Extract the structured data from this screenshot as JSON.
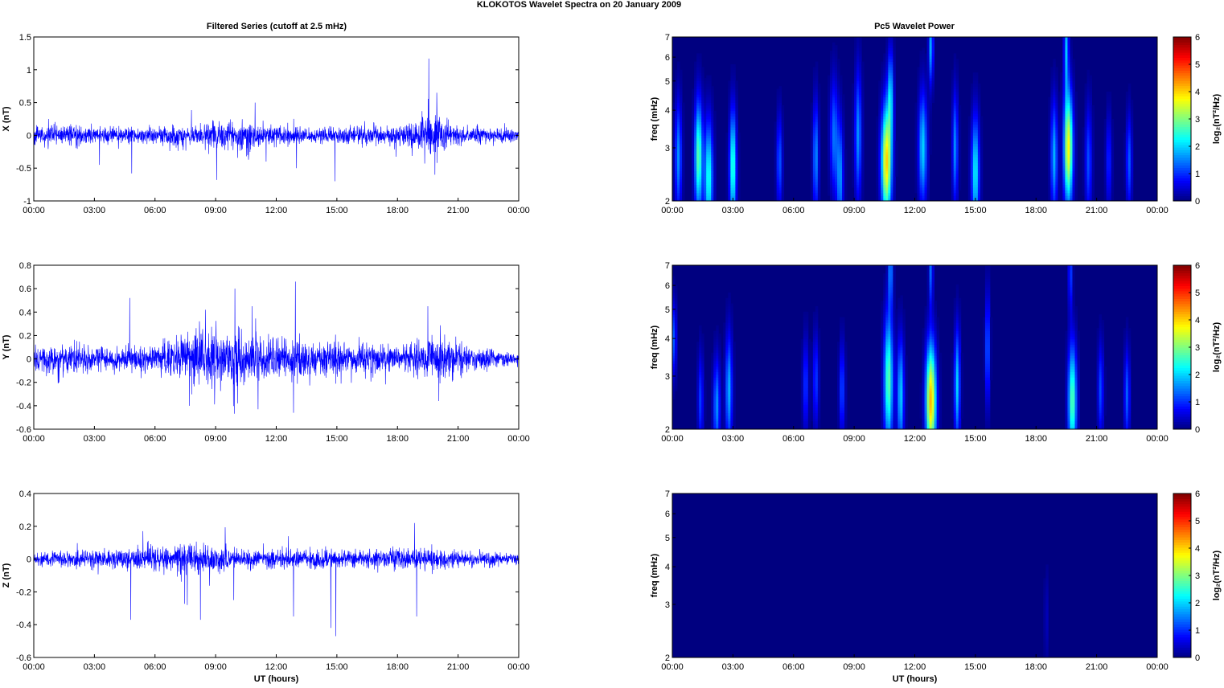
{
  "figure": {
    "title": "KLOKOTOS Wavelet Spectra on 20 January   2009",
    "left_column_title": "Filtered Series (cutoff at 2.5 mHz)",
    "right_column_title": "Pc5 Wavelet Power"
  },
  "time_ticks": [
    "00:00",
    "03:00",
    "06:00",
    "09:00",
    "12:00",
    "15:00",
    "18:00",
    "21:00",
    "00:00"
  ],
  "colors": {
    "series": "#0000ff",
    "axes": "#000000"
  },
  "colormap": "jet",
  "chart_data": [
    {
      "id": "x-series",
      "type": "line",
      "xlabel": "",
      "ylabel": "X (nT)",
      "xlim": [
        0,
        24
      ],
      "ylim": [
        -1,
        1.5
      ],
      "yticks": [
        "-1",
        "-0.5",
        "0",
        "0.5",
        "1",
        "1.5"
      ],
      "ytick_values": [
        -1,
        -0.5,
        0,
        0.5,
        1,
        1.5
      ],
      "x_unit": "hours UT",
      "series": [
        {
          "color": "#0000ff",
          "noise_envelope": [
            [
              0,
              0.12
            ],
            [
              2,
              0.14
            ],
            [
              4,
              0.09
            ],
            [
              6,
              0.12
            ],
            [
              8,
              0.15
            ],
            [
              10,
              0.2
            ],
            [
              12,
              0.14
            ],
            [
              14,
              0.11
            ],
            [
              16,
              0.12
            ],
            [
              18,
              0.12
            ],
            [
              19.8,
              0.3
            ],
            [
              21,
              0.12
            ],
            [
              24,
              0.08
            ]
          ],
          "spikes": [
            [
              4.85,
              -0.58
            ],
            [
              10.95,
              0.5
            ],
            [
              19.55,
              1.17
            ],
            [
              19.85,
              -0.6
            ],
            [
              19.95,
              0.65
            ],
            [
              9.05,
              -0.68
            ],
            [
              14.9,
              -0.7
            ],
            [
              13.0,
              -0.5
            ],
            [
              3.25,
              -0.45
            ],
            [
              11.5,
              -0.4
            ]
          ]
        }
      ]
    },
    {
      "id": "y-series",
      "type": "line",
      "xlabel": "",
      "ylabel": "Y (nT)",
      "xlim": [
        0,
        24
      ],
      "ylim": [
        -0.6,
        0.8
      ],
      "yticks": [
        "-0.6",
        "-0.4",
        "-0.2",
        "0",
        "0.2",
        "0.4",
        "0.6",
        "0.8"
      ],
      "ytick_values": [
        -0.6,
        -0.4,
        -0.2,
        0,
        0.2,
        0.4,
        0.6,
        0.8
      ],
      "x_unit": "hours UT",
      "series": [
        {
          "color": "#0000ff",
          "noise_envelope": [
            [
              0,
              0.1
            ],
            [
              2,
              0.12
            ],
            [
              4,
              0.08
            ],
            [
              6,
              0.1
            ],
            [
              7.5,
              0.2
            ],
            [
              9,
              0.2
            ],
            [
              10.5,
              0.2
            ],
            [
              11.5,
              0.14
            ],
            [
              13,
              0.18
            ],
            [
              14,
              0.12
            ],
            [
              16,
              0.12
            ],
            [
              18,
              0.1
            ],
            [
              20,
              0.16
            ],
            [
              22,
              0.08
            ],
            [
              24,
              0.05
            ]
          ],
          "spikes": [
            [
              4.75,
              0.52
            ],
            [
              9.95,
              0.6
            ],
            [
              12.95,
              0.66
            ],
            [
              12.85,
              -0.46
            ],
            [
              11.1,
              -0.43
            ],
            [
              19.5,
              0.45
            ],
            [
              20.05,
              -0.36
            ],
            [
              7.7,
              -0.4
            ],
            [
              8.5,
              0.42
            ],
            [
              10.8,
              0.45
            ]
          ]
        }
      ]
    },
    {
      "id": "z-series",
      "type": "line",
      "xlabel": "UT (hours)",
      "ylabel": "Z (nT)",
      "xlim": [
        0,
        24
      ],
      "ylim": [
        -0.6,
        0.4
      ],
      "yticks": [
        "-0.6",
        "-0.4",
        "-0.2",
        "0",
        "0.2",
        "0.4"
      ],
      "ytick_values": [
        -0.6,
        -0.4,
        -0.2,
        0,
        0.2,
        0.4
      ],
      "x_unit": "hours UT",
      "series": [
        {
          "color": "#0000ff",
          "noise_envelope": [
            [
              0,
              0.04
            ],
            [
              4,
              0.05
            ],
            [
              6,
              0.06
            ],
            [
              8,
              0.08
            ],
            [
              10,
              0.06
            ],
            [
              12,
              0.05
            ],
            [
              14,
              0.05
            ],
            [
              16,
              0.05
            ],
            [
              18,
              0.06
            ],
            [
              20,
              0.05
            ],
            [
              24,
              0.03
            ]
          ],
          "spikes": [
            [
              4.8,
              -0.37
            ],
            [
              8.25,
              -0.37
            ],
            [
              14.7,
              -0.42
            ],
            [
              14.95,
              -0.47
            ],
            [
              18.85,
              0.22
            ],
            [
              18.95,
              -0.35
            ],
            [
              12.85,
              -0.35
            ],
            [
              7.6,
              -0.28
            ],
            [
              9.9,
              -0.25
            ],
            [
              5.4,
              0.17
            ]
          ]
        }
      ]
    },
    {
      "id": "x-wavelet",
      "type": "heatmap",
      "xlabel": "",
      "ylabel": "freq (mHz)",
      "xlim": [
        0,
        24
      ],
      "ylim": [
        2,
        7
      ],
      "yscale": "log",
      "yticks": [
        "2",
        "3",
        "4",
        "5",
        "6",
        "7"
      ],
      "ytick_values": [
        2,
        3,
        4,
        5,
        6,
        7
      ],
      "colorbar": {
        "label": "log₂(nT²/Hz)",
        "range": [
          0,
          6
        ],
        "ticks": [
          "0",
          "1",
          "2",
          "3",
          "4",
          "5",
          "6"
        ]
      },
      "blobs": [
        [
          0.3,
          2.8,
          0.12,
          0.3,
          1.6
        ],
        [
          1.3,
          2.8,
          0.14,
          0.3,
          2.8
        ],
        [
          1.8,
          2.4,
          0.15,
          0.3,
          2.4
        ],
        [
          3.0,
          2.6,
          0.12,
          0.3,
          2.6
        ],
        [
          5.3,
          2.7,
          0.1,
          0.25,
          1.3
        ],
        [
          7.1,
          2.8,
          0.1,
          0.3,
          1.6
        ],
        [
          8.0,
          3.3,
          0.14,
          0.3,
          1.4
        ],
        [
          8.3,
          2.4,
          0.12,
          0.3,
          1.6
        ],
        [
          9.2,
          3.3,
          0.12,
          0.35,
          1.6
        ],
        [
          10.6,
          2.7,
          0.18,
          0.3,
          4.0
        ],
        [
          10.8,
          4.5,
          0.1,
          0.25,
          1.8
        ],
        [
          12.4,
          3.0,
          0.15,
          0.3,
          2.0
        ],
        [
          12.8,
          6.5,
          0.08,
          0.2,
          1.8
        ],
        [
          14.0,
          3.0,
          0.1,
          0.3,
          1.6
        ],
        [
          15.0,
          2.5,
          0.14,
          0.3,
          2.2
        ],
        [
          18.9,
          2.8,
          0.12,
          0.3,
          1.8
        ],
        [
          19.6,
          3.0,
          0.16,
          0.3,
          3.8
        ],
        [
          19.5,
          6.5,
          0.08,
          0.25,
          1.8
        ],
        [
          20.6,
          2.7,
          0.12,
          0.3,
          1.2
        ],
        [
          21.6,
          2.7,
          0.1,
          0.25,
          1.0
        ],
        [
          22.6,
          2.7,
          0.1,
          0.25,
          1.3
        ]
      ]
    },
    {
      "id": "y-wavelet",
      "type": "heatmap",
      "xlabel": "",
      "ylabel": "freq (mHz)",
      "xlim": [
        0,
        24
      ],
      "ylim": [
        2,
        7
      ],
      "yscale": "log",
      "yticks": [
        "2",
        "3",
        "4",
        "5",
        "6",
        "7"
      ],
      "ytick_values": [
        2,
        3,
        4,
        5,
        6,
        7
      ],
      "colorbar": {
        "label": "log₂(nT²/Hz)",
        "range": [
          0,
          6
        ],
        "ticks": [
          "0",
          "1",
          "2",
          "3",
          "4",
          "5",
          "6"
        ]
      },
      "blobs": [
        [
          0.1,
          4.0,
          0.06,
          0.2,
          1.6
        ],
        [
          1.4,
          2.5,
          0.1,
          0.25,
          1.1
        ],
        [
          2.2,
          2.4,
          0.12,
          0.25,
          1.6
        ],
        [
          2.8,
          2.7,
          0.12,
          0.3,
          1.8
        ],
        [
          6.6,
          2.8,
          0.1,
          0.25,
          1.1
        ],
        [
          7.1,
          2.9,
          0.1,
          0.25,
          1.1
        ],
        [
          8.4,
          2.7,
          0.1,
          0.25,
          1.2
        ],
        [
          10.7,
          2.9,
          0.16,
          0.35,
          2.8
        ],
        [
          10.8,
          6.8,
          0.08,
          0.2,
          1.6
        ],
        [
          11.3,
          2.6,
          0.12,
          0.3,
          2.0
        ],
        [
          12.8,
          2.5,
          0.18,
          0.3,
          4.2
        ],
        [
          12.8,
          6.8,
          0.07,
          0.2,
          1.4
        ],
        [
          14.1,
          2.8,
          0.1,
          0.3,
          2.0
        ],
        [
          15.6,
          3.7,
          0.08,
          0.3,
          1.4
        ],
        [
          19.8,
          2.5,
          0.15,
          0.3,
          2.8
        ],
        [
          19.7,
          6.6,
          0.07,
          0.2,
          1.2
        ],
        [
          21.2,
          2.7,
          0.1,
          0.25,
          1.2
        ],
        [
          22.5,
          2.6,
          0.1,
          0.25,
          1.3
        ]
      ]
    },
    {
      "id": "z-wavelet",
      "type": "heatmap",
      "xlabel": "UT (hours)",
      "ylabel": "freq (mHz)",
      "xlim": [
        0,
        24
      ],
      "ylim": [
        2,
        7
      ],
      "yscale": "log",
      "yticks": [
        "2",
        "3",
        "4",
        "5",
        "6",
        "7"
      ],
      "ytick_values": [
        2,
        3,
        4,
        5,
        6,
        7
      ],
      "colorbar": {
        "label": "log₂(nT²/Hz)",
        "range": [
          0,
          6
        ],
        "ticks": [
          "0",
          "1",
          "2",
          "3",
          "4",
          "5",
          "6"
        ]
      },
      "blobs": [
        [
          18.5,
          2.7,
          0.06,
          0.25,
          0.4
        ]
      ]
    }
  ]
}
